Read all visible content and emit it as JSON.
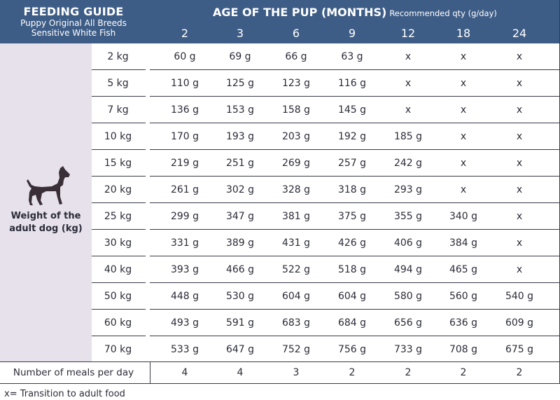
{
  "guide": {
    "title": "FEEDING GUIDE",
    "product_line1": "Puppy Original All Breeds",
    "product_line2": "Sensitive White Fish"
  },
  "age_header": {
    "title": "AGE OF THE PUP (MONTHS)",
    "subtitle": "Recommended qty (g/day)",
    "months": [
      "2",
      "3",
      "6",
      "9",
      "12",
      "18",
      "24"
    ]
  },
  "sidebar": {
    "icon": "dog-icon",
    "label_line1": "Weight of the",
    "label_line2": "adult dog (kg)"
  },
  "rows": [
    {
      "weight": "2 kg",
      "values": [
        "60 g",
        "69 g",
        "66 g",
        "63 g",
        "x",
        "x",
        "x"
      ]
    },
    {
      "weight": "5 kg",
      "values": [
        "110 g",
        "125 g",
        "123 g",
        "116 g",
        "x",
        "x",
        "x"
      ]
    },
    {
      "weight": "7 kg",
      "values": [
        "136 g",
        "153 g",
        "158 g",
        "145 g",
        "x",
        "x",
        "x"
      ]
    },
    {
      "weight": "10 kg",
      "values": [
        "170 g",
        "193 g",
        "203 g",
        "192 g",
        "185 g",
        "x",
        "x"
      ]
    },
    {
      "weight": "15 kg",
      "values": [
        "219 g",
        "251 g",
        "269 g",
        "257 g",
        "242 g",
        "x",
        "x"
      ]
    },
    {
      "weight": "20 kg",
      "values": [
        "261 g",
        "302 g",
        "328 g",
        "318 g",
        "293 g",
        "x",
        "x"
      ]
    },
    {
      "weight": "25 kg",
      "values": [
        "299 g",
        "347 g",
        "381 g",
        "375 g",
        "355 g",
        "340 g",
        "x"
      ]
    },
    {
      "weight": "30 kg",
      "values": [
        "331 g",
        "389 g",
        "431 g",
        "426 g",
        "406 g",
        "384 g",
        "x"
      ]
    },
    {
      "weight": "40 kg",
      "values": [
        "393 g",
        "466 g",
        "522 g",
        "518 g",
        "494 g",
        "465 g",
        "x"
      ]
    },
    {
      "weight": "50 kg",
      "values": [
        "448 g",
        "530 g",
        "604 g",
        "604 g",
        "580 g",
        "560 g",
        "540 g"
      ]
    },
    {
      "weight": "60 kg",
      "values": [
        "493 g",
        "591 g",
        "683 g",
        "684 g",
        "656 g",
        "636 g",
        "609 g"
      ]
    },
    {
      "weight": "70 kg",
      "values": [
        "533 g",
        "647 g",
        "752 g",
        "756 g",
        "733 g",
        "708 g",
        "675 g"
      ]
    }
  ],
  "meals": {
    "label": "Number of meals per day",
    "values": [
      "4",
      "4",
      "3",
      "2",
      "2",
      "2",
      "2"
    ]
  },
  "footnote": "x= Transition to adult food",
  "colors": {
    "header_bg": "#3e5d86",
    "sidebar_bg": "#e6e1ea",
    "text": "#2b2b38"
  }
}
